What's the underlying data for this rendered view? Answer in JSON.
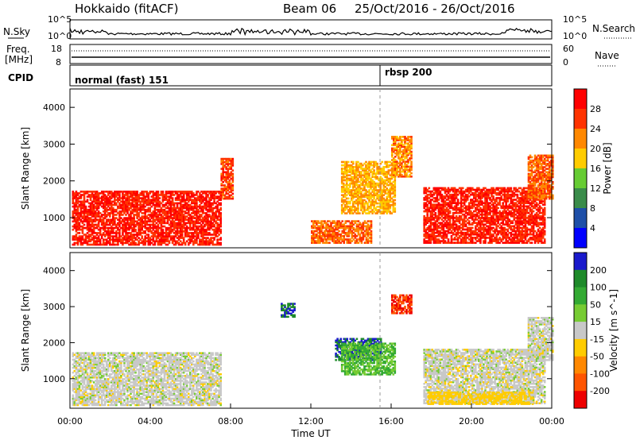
{
  "header": {
    "station": "Hokkaido (fitACF)",
    "beam": "Beam 06",
    "date_range": "25/Oct/2016 - 26/Oct/2016"
  },
  "noise_panel": {
    "left_label": "N.Sky",
    "right_label": "N.Search",
    "left_ticks": [
      "10^5",
      "10^0"
    ],
    "right_ticks": [
      "10^5",
      "10^0"
    ]
  },
  "freq_panel": {
    "left_label_1": "Freq.",
    "left_label_2": "[MHz]",
    "left_ticks": [
      "18",
      "8"
    ],
    "right_label": "Nave",
    "right_ticks": [
      "60",
      "0"
    ]
  },
  "cpid_panel": {
    "label": "CPID",
    "modes": [
      {
        "name": "normal (fast) 151",
        "start": "00:00"
      },
      {
        "name": "rbsp 200",
        "start": "15:30"
      }
    ]
  },
  "x_axis": {
    "label": "Time UT",
    "ticks": [
      "00:00",
      "04:00",
      "08:00",
      "12:00",
      "16:00",
      "20:00",
      "00:00"
    ]
  },
  "chart_data": [
    {
      "type": "heatmap",
      "name": "power",
      "xlabel": "Time UT",
      "ylabel": "Slant Range [km]",
      "xlim": [
        0,
        24
      ],
      "ylim": [
        180,
        4500
      ],
      "y_ticks": [
        "1000",
        "2000",
        "3000",
        "4000"
      ],
      "colorbar_label": "Power [dB]",
      "colorbar_ticks": [
        "28",
        "24",
        "20",
        "16",
        "12",
        "8",
        "4"
      ],
      "colorbar_colors": [
        "#0000ff",
        "#1e4fa8",
        "#3a8c4a",
        "#66cc33",
        "#ffcc00",
        "#ff8800",
        "#ff3300",
        "#ff0000"
      ],
      "regions": [
        {
          "t0": 0.1,
          "t1": 7.5,
          "r0": 250,
          "r1": 1700,
          "value": 26
        },
        {
          "t0": 7.5,
          "t1": 8.1,
          "r0": 1500,
          "r1": 2600,
          "value": 24
        },
        {
          "t0": 12.0,
          "t1": 15.0,
          "r0": 300,
          "r1": 900,
          "value": 22
        },
        {
          "t0": 13.5,
          "t1": 16.2,
          "r0": 1100,
          "r1": 2500,
          "value": 18
        },
        {
          "t0": 16.0,
          "t1": 17.0,
          "r0": 2100,
          "r1": 3200,
          "value": 20
        },
        {
          "t0": 17.6,
          "t1": 23.6,
          "r0": 300,
          "r1": 1800,
          "value": 26
        },
        {
          "t0": 22.8,
          "t1": 24.0,
          "r0": 1500,
          "r1": 2700,
          "value": 22
        }
      ]
    },
    {
      "type": "heatmap",
      "name": "velocity",
      "xlabel": "Time UT",
      "ylabel": "Slant Range [km]",
      "xlim": [
        0,
        24
      ],
      "ylim": [
        180,
        4500
      ],
      "y_ticks": [
        "1000",
        "2000",
        "3000",
        "4000"
      ],
      "colorbar_label": "Velocity [m s^-1]",
      "colorbar_ticks": [
        "200",
        "100",
        "50",
        "15",
        "-15",
        "-50",
        "-100",
        "-200"
      ],
      "colorbar_colors": [
        "#1a1acc",
        "#1e8a2a",
        "#33aa33",
        "#77cc33",
        "#c8c8c8",
        "#ffcc00",
        "#ff8800",
        "#ff5500",
        "#ee0000"
      ],
      "regions": [
        {
          "t0": 0.1,
          "t1": 7.5,
          "r0": 250,
          "r1": 1700,
          "value": 0
        },
        {
          "t0": 10.5,
          "t1": 11.2,
          "r0": 2700,
          "r1": 3100,
          "value": 200
        },
        {
          "t0": 13.2,
          "t1": 15.5,
          "r0": 1500,
          "r1": 2100,
          "value": 200
        },
        {
          "t0": 13.5,
          "t1": 16.2,
          "r0": 1100,
          "r1": 2000,
          "value": 50
        },
        {
          "t0": 16.0,
          "t1": 17.0,
          "r0": 2800,
          "r1": 3300,
          "value": -200
        },
        {
          "t0": 17.6,
          "t1": 23.6,
          "r0": 300,
          "r1": 1800,
          "value": 0
        },
        {
          "t0": 22.8,
          "t1": 24.0,
          "r0": 1500,
          "r1": 2700,
          "value": 0
        },
        {
          "t0": 17.8,
          "t1": 23.0,
          "r0": 280,
          "r1": 600,
          "value": -30
        }
      ]
    }
  ]
}
